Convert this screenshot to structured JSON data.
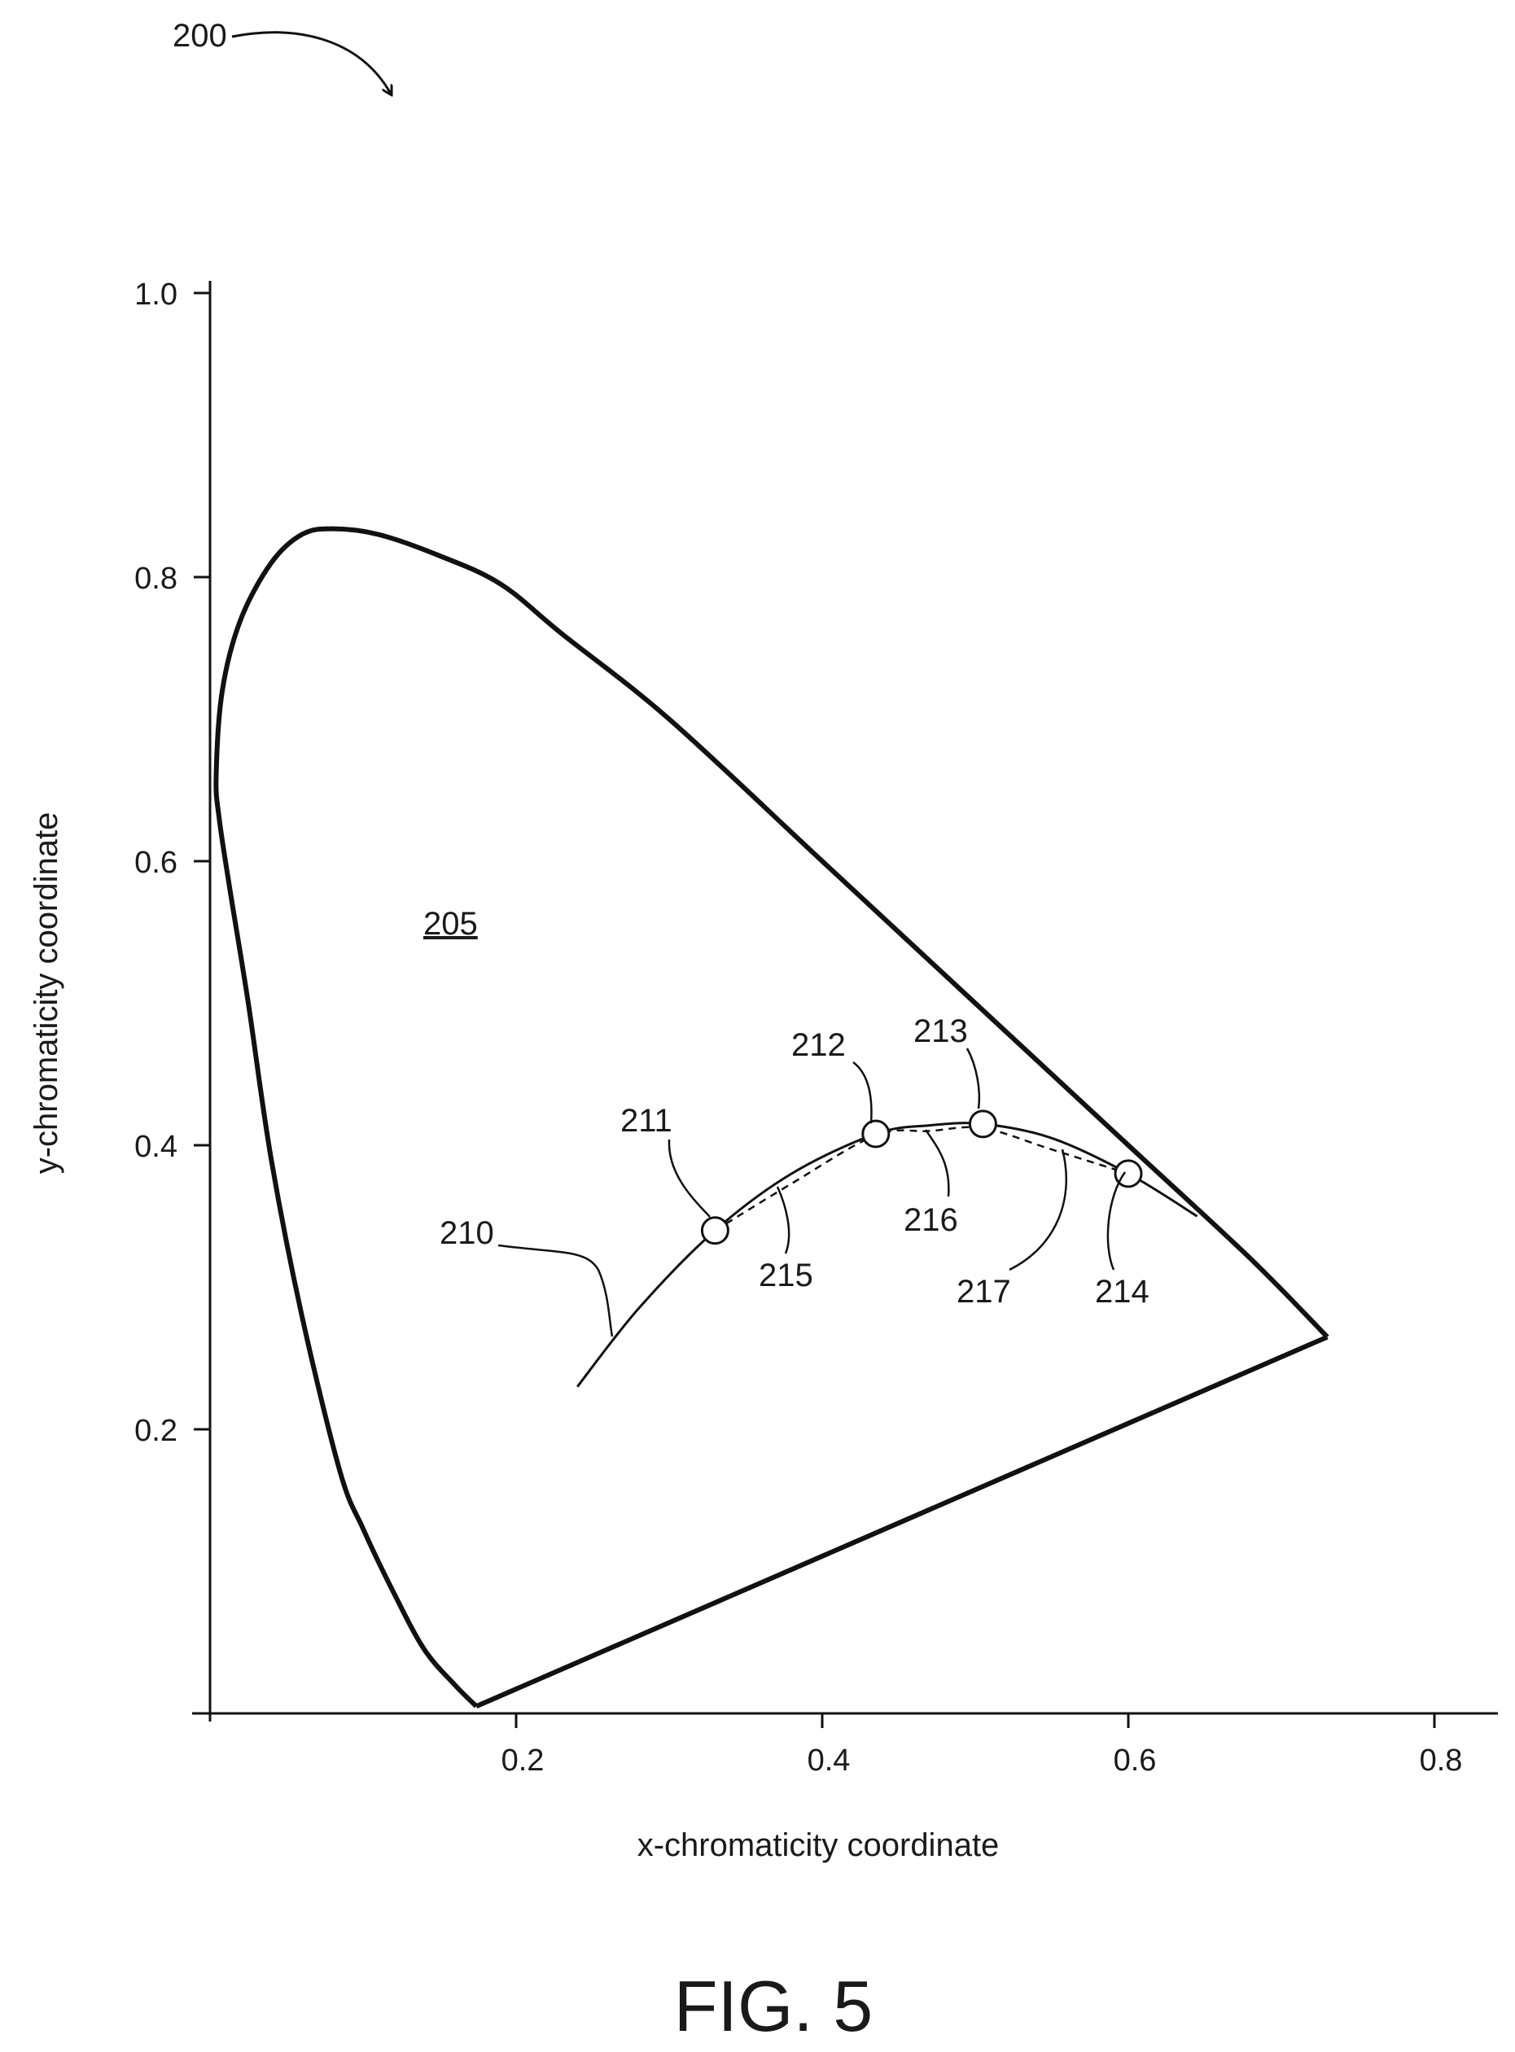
{
  "figure": {
    "ref_number": "200",
    "caption": "FIG. 5"
  },
  "chart_data": {
    "type": "line",
    "xlabel": "x-chromaticity coordinate",
    "ylabel": "y-chromaticity coordinate",
    "xlim": [
      0,
      0.8
    ],
    "ylim": [
      0,
      1.0
    ],
    "x_ticks": [
      0.2,
      0.4,
      0.6,
      0.8
    ],
    "x_tick_labels": [
      "0.2",
      "0.4",
      "0.6",
      "0.8"
    ],
    "y_ticks": [
      0.2,
      0.4,
      0.6,
      0.8,
      1.0
    ],
    "y_tick_labels": [
      "0.2",
      "0.4",
      "0.6",
      "0.8",
      "1.0"
    ],
    "grid": false,
    "region_label": "205",
    "series": [
      {
        "ref": "spectral-locus",
        "style": "solid-thick",
        "x": [
          0.174,
          0.16,
          0.14,
          0.12,
          0.1,
          0.085,
          0.06,
          0.04,
          0.025,
          0.013,
          0.006,
          0.004,
          0.008,
          0.02,
          0.04,
          0.06,
          0.08,
          0.11,
          0.15,
          0.19,
          0.23,
          0.3,
          0.4,
          0.5,
          0.6,
          0.68,
          0.73
        ],
        "y": [
          0.005,
          0.02,
          0.045,
          0.085,
          0.13,
          0.17,
          0.28,
          0.39,
          0.5,
          0.58,
          0.63,
          0.66,
          0.72,
          0.77,
          0.81,
          0.83,
          0.834,
          0.83,
          0.815,
          0.795,
          0.76,
          0.7,
          0.6,
          0.5,
          0.4,
          0.32,
          0.265
        ]
      },
      {
        "ref": "purple-line",
        "style": "solid-thick",
        "x": [
          0.174,
          0.73
        ],
        "y": [
          0.005,
          0.265
        ]
      },
      {
        "ref": "210",
        "style": "solid",
        "x": [
          0.24,
          0.28,
          0.33,
          0.38,
          0.435,
          0.47,
          0.505,
          0.55,
          0.6,
          0.645
        ],
        "y": [
          0.23,
          0.285,
          0.34,
          0.38,
          0.408,
          0.414,
          0.415,
          0.405,
          0.38,
          0.35
        ]
      },
      {
        "ref": "215-216-217",
        "style": "dashed",
        "x": [
          0.33,
          0.38,
          0.435,
          0.47,
          0.505,
          0.55,
          0.6
        ],
        "y": [
          0.34,
          0.373,
          0.407,
          0.41,
          0.412,
          0.397,
          0.38
        ]
      }
    ],
    "points": [
      {
        "ref": "211",
        "x": 0.33,
        "y": 0.34
      },
      {
        "ref": "212",
        "x": 0.435,
        "y": 0.408
      },
      {
        "ref": "213",
        "x": 0.505,
        "y": 0.415
      },
      {
        "ref": "214",
        "x": 0.6,
        "y": 0.38
      }
    ],
    "annotations": [
      "210",
      "211",
      "212",
      "213",
      "214",
      "215",
      "216",
      "217"
    ]
  }
}
